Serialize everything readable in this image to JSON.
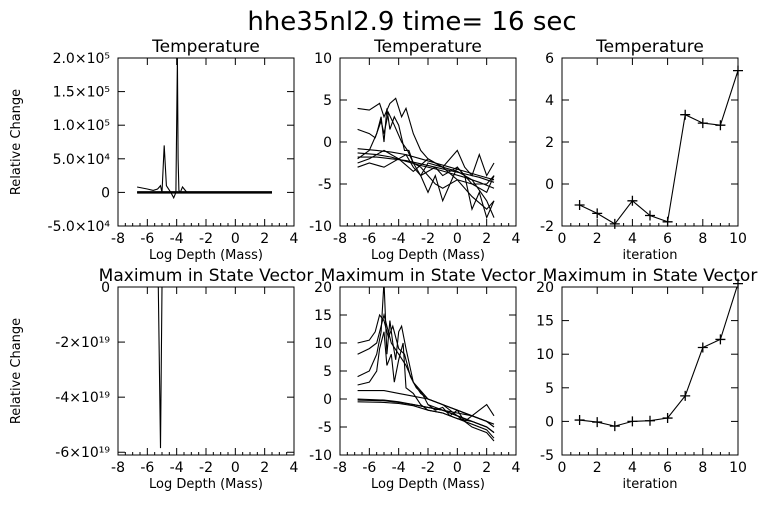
{
  "figure_title": "hhe35nl2.9   time=  16 sec",
  "chart_data": [
    {
      "type": "line",
      "panel": "top-left",
      "title": "Temperature",
      "xlabel": "Log Depth (Mass)",
      "ylabel": "Relative Change",
      "xlim": [
        -8,
        4
      ],
      "ylim": [
        -50000,
        200000
      ],
      "xticks": [
        "-8",
        "-6",
        "-4",
        "-2",
        "0",
        "2",
        "4"
      ],
      "yticks": [
        "-5.0×10⁴",
        "0",
        "5.0×10⁴",
        "1.0×10⁵",
        "1.5×10⁵",
        "2.0×10⁵"
      ],
      "ytick_values": [
        -50000,
        0,
        50000,
        100000,
        150000,
        200000
      ],
      "series": [
        {
          "x": [
            -6.7,
            -6.0,
            -5.6,
            -5.3,
            -5.1,
            -5.0,
            -4.85,
            -4.7,
            -4.4,
            -4.2,
            -4.05,
            -3.95,
            -3.9,
            -3.85,
            -3.75,
            -3.6,
            -3.3,
            2.5
          ],
          "y": [
            8000,
            5000,
            3000,
            5000,
            10000,
            0,
            70000,
            10000,
            0,
            -8000,
            0,
            200000,
            50000,
            3000,
            0,
            8000,
            0,
            0
          ]
        },
        {
          "x": [
            -6.7,
            2.5
          ],
          "y": [
            1000,
            1000
          ]
        },
        {
          "x": [
            -6.7,
            2.5
          ],
          "y": [
            0,
            0
          ]
        },
        {
          "x": [
            -6.7,
            2.5
          ],
          "y": [
            -1000,
            -1000
          ]
        }
      ]
    },
    {
      "type": "line",
      "panel": "top-middle",
      "title": "Temperature",
      "xlabel": "Log Depth (Mass)",
      "ylabel": "",
      "xlim": [
        -8,
        4
      ],
      "ylim": [
        -10,
        10
      ],
      "xticks": [
        "-8",
        "-6",
        "-4",
        "-2",
        "0",
        "2",
        "4"
      ],
      "yticks": [
        "-10",
        "-5",
        "0",
        "5",
        "10"
      ],
      "ytick_values": [
        -10,
        -5,
        0,
        5,
        10
      ],
      "series": [
        {
          "x": [
            -6.8,
            -6,
            -5.3,
            -5,
            -4.6,
            -4.2,
            -3.8,
            -3.5,
            -3,
            -2.5,
            -2,
            -1,
            0,
            1,
            2,
            2.5
          ],
          "y": [
            4,
            3.8,
            4.6,
            3,
            4.6,
            5.2,
            3,
            4,
            1,
            -1,
            -2,
            -3,
            -3.5,
            -4.5,
            -7,
            -9
          ]
        },
        {
          "x": [
            -6.8,
            -6,
            -5.5,
            -5.2,
            -5,
            -4.8,
            -4.6,
            -4.3,
            -4,
            -3.6,
            -3.3,
            -3,
            -2.5,
            -2,
            -1.5,
            -1,
            0,
            1,
            2,
            2.5
          ],
          "y": [
            -2,
            -1,
            1,
            3,
            0,
            4,
            1.5,
            3,
            2,
            -1,
            -1,
            -2.5,
            -3,
            -4,
            -5,
            -5.5,
            -4.5,
            -6.5,
            -8,
            -7
          ]
        },
        {
          "x": [
            -6.8,
            -6,
            -5.6,
            -5.2,
            -5,
            -4.7,
            -4.3,
            -3.8,
            -3.4,
            -3,
            -2.5,
            -2,
            -1.5,
            -1,
            0,
            1,
            2,
            2.5
          ],
          "y": [
            1.5,
            1,
            0.5,
            2.5,
            1,
            3.5,
            2,
            0,
            -1,
            -2.5,
            -4,
            -3.5,
            -3,
            -4,
            -3,
            -5,
            -6,
            -4
          ]
        },
        {
          "x": [
            -6.8,
            -6,
            -5,
            -4.5,
            -4,
            -3.5,
            -3,
            -2.5,
            -2,
            -1,
            0,
            0.5,
            1,
            1.5,
            2,
            2.5
          ],
          "y": [
            -2.5,
            -2,
            -1,
            -1.5,
            -2,
            -1.5,
            -3,
            -4,
            -2.5,
            -3,
            -1,
            -3,
            -4,
            -1.5,
            -4,
            -2.5
          ]
        },
        {
          "x": [
            -6.8,
            -5.5,
            -4.5,
            -3.5,
            -2.5,
            -1.5,
            -0.5,
            0.5,
            1.5,
            2.5
          ],
          "y": [
            -0.8,
            -1,
            -1.2,
            -1.5,
            -2,
            -2.5,
            -3,
            -3.5,
            -4,
            -4.5
          ]
        },
        {
          "x": [
            -6.8,
            -5.5,
            -4.5,
            -3.5,
            -2.5,
            -1.5,
            -0.5,
            0.5,
            1.5,
            2.5
          ],
          "y": [
            -1.8,
            -1.8,
            -2,
            -2.2,
            -2.6,
            -3,
            -3.4,
            -3.8,
            -4.2,
            -4.8
          ]
        },
        {
          "x": [
            -6.8,
            -5.5,
            -4.5,
            -3.5,
            -2.5,
            -1.5,
            -0.5,
            0.5,
            1.5,
            2.5
          ],
          "y": [
            -1.3,
            -1.5,
            -1.8,
            -2.3,
            -2.8,
            -3.2,
            -3.7,
            -4.2,
            -4.8,
            -5.5
          ]
        },
        {
          "x": [
            -6.8,
            -6,
            -5,
            -4,
            -3,
            -2,
            -1,
            0,
            1,
            2,
            2.5
          ],
          "y": [
            -3,
            -2.5,
            -3,
            -2,
            -3.5,
            -2,
            -3,
            -4.5,
            -5,
            -5,
            -4
          ]
        },
        {
          "x": [
            -2.5,
            -2,
            -1.5,
            -1,
            -0.5,
            0,
            0.5,
            1,
            1.5,
            2,
            2.5
          ],
          "y": [
            -4,
            -6,
            -4,
            -7,
            -5,
            -3,
            -4,
            -8,
            -6,
            -9,
            -7
          ]
        }
      ]
    },
    {
      "type": "line",
      "panel": "top-right",
      "title": "Temperature",
      "xlabel": "iteration",
      "ylabel": "",
      "xlim": [
        0,
        10
      ],
      "ylim": [
        -2,
        6
      ],
      "xticks": [
        "0",
        "2",
        "4",
        "6",
        "8",
        "10"
      ],
      "yticks": [
        "-2",
        "0",
        "2",
        "4",
        "6"
      ],
      "ytick_values": [
        -2,
        0,
        2,
        4,
        6
      ],
      "markers": "plus",
      "series": [
        {
          "x": [
            1,
            2,
            3,
            4,
            5,
            6,
            7,
            8,
            9,
            10
          ],
          "y": [
            -1.0,
            -1.4,
            -1.9,
            -0.8,
            -1.5,
            -1.8,
            3.3,
            2.9,
            2.8,
            5.4
          ]
        }
      ]
    },
    {
      "type": "line",
      "panel": "bottom-left",
      "title": "Maximum in State Vector",
      "xlabel": "Log Depth (Mass)",
      "ylabel": "Relative Change",
      "xlim": [
        -8,
        4
      ],
      "ylim": [
        -6.1e+19,
        0
      ],
      "xticks": [
        "-8",
        "-6",
        "-4",
        "-2",
        "0",
        "2",
        "4"
      ],
      "yticks": [
        "-6×10¹⁹",
        "-4×10¹⁹",
        "-2×10¹⁹",
        "0"
      ],
      "ytick_values": [
        -6e+19,
        -4e+19,
        -2e+19,
        0
      ],
      "series": [
        {
          "x": [
            -5.5,
            -5.25,
            -5.1,
            -5.0,
            -4.9,
            2.5
          ],
          "y": [
            0,
            0,
            -5.85e+19,
            0,
            0,
            0
          ]
        }
      ]
    },
    {
      "type": "line",
      "panel": "bottom-middle",
      "title": "Maximum in State Vector",
      "xlabel": "Log Depth (Mass)",
      "ylabel": "",
      "xlim": [
        -8,
        4
      ],
      "ylim": [
        -10,
        20
      ],
      "xticks": [
        "-8",
        "-6",
        "-4",
        "-2",
        "0",
        "2",
        "4"
      ],
      "yticks": [
        "-10",
        "-5",
        "0",
        "5",
        "10",
        "15",
        "20"
      ],
      "ytick_values": [
        -10,
        -5,
        0,
        5,
        10,
        15,
        20
      ],
      "series": [
        {
          "x": [
            -6.8,
            -6,
            -5.5,
            -5.2,
            -5,
            -4.8,
            -4.6,
            -4.4,
            -4.2,
            -4,
            -3.8,
            -3.5,
            -3,
            -2.5,
            -2,
            -1,
            0,
            1,
            2,
            2.5
          ],
          "y": [
            4,
            5,
            8,
            12,
            21,
            8,
            14,
            10,
            7,
            12,
            13,
            9,
            3,
            1,
            0,
            -1,
            -3,
            -4,
            -5,
            -6
          ]
        },
        {
          "x": [
            -6.8,
            -6,
            -5.5,
            -5.3,
            -5,
            -4.8,
            -4.5,
            -4.3,
            -4,
            -3.7,
            -3.5,
            -3,
            -2.5,
            -2,
            -1,
            0,
            1,
            2,
            2.5
          ],
          "y": [
            2.5,
            3,
            5,
            9,
            12,
            6,
            8,
            3,
            7,
            10,
            2,
            1,
            -1,
            -2,
            -2.5,
            -3.5,
            -4,
            -5,
            -6
          ]
        },
        {
          "x": [
            -6.8,
            -6,
            -5.6,
            -5.3,
            -5,
            -4.7,
            -4.4,
            -4,
            -3.6,
            -3.2,
            -2.8,
            -2.4,
            -2,
            -1.5,
            -1,
            0,
            1,
            2,
            2.5
          ],
          "y": [
            10,
            10.5,
            12,
            15,
            14,
            11,
            13,
            9,
            8,
            4,
            2,
            1,
            -1,
            -1.5,
            -2,
            -3,
            -5,
            -6,
            -7.5
          ]
        },
        {
          "x": [
            -6.8,
            -6,
            -5.5,
            -5,
            -4.5,
            -4,
            -3.5,
            -3,
            -2,
            -1,
            0,
            1,
            2,
            2.5
          ],
          "y": [
            8,
            9,
            10,
            15,
            10,
            8,
            6,
            3,
            0,
            -1,
            -2,
            -3,
            -4,
            -5
          ]
        },
        {
          "x": [
            -6.8,
            -5,
            -4,
            -3,
            -2,
            -1,
            0,
            1,
            2,
            2.5
          ],
          "y": [
            1.5,
            1.5,
            1,
            0.5,
            0,
            -1,
            -2,
            -3,
            -4,
            -5
          ]
        },
        {
          "x": [
            -6.8,
            -5,
            -4,
            -3,
            -2,
            -1,
            0,
            1,
            2,
            2.5
          ],
          "y": [
            -0.2,
            -0.3,
            -0.6,
            -1,
            -1.5,
            -2,
            -3,
            -4,
            -5,
            -6
          ]
        },
        {
          "x": [
            -6.8,
            -5,
            -4,
            -3,
            -2,
            -1,
            0,
            1,
            2,
            2.5
          ],
          "y": [
            -0.5,
            -0.6,
            -0.8,
            -1.2,
            -2,
            -2.5,
            -3.5,
            -4.5,
            -5.5,
            -7
          ]
        },
        {
          "x": [
            -6.8,
            -5,
            -4,
            -3,
            -2,
            -1,
            0,
            1,
            2,
            2.5
          ],
          "y": [
            0,
            -0.2,
            -0.5,
            -1,
            -1.5,
            -2,
            -2.5,
            -3,
            -4,
            -4.5
          ]
        },
        {
          "x": [
            -2,
            -1.5,
            -1,
            -0.5,
            0,
            0.5,
            1,
            1.5,
            2,
            2.5
          ],
          "y": [
            -1,
            -2,
            -1.5,
            -3,
            -2,
            -4,
            -3,
            -2,
            -1,
            -3
          ]
        }
      ]
    },
    {
      "type": "line",
      "panel": "bottom-right",
      "title": "Maximum in State Vector",
      "xlabel": "iteration",
      "ylabel": "",
      "xlim": [
        0,
        10
      ],
      "ylim": [
        -5,
        20
      ],
      "xticks": [
        "0",
        "2",
        "4",
        "6",
        "8",
        "10"
      ],
      "yticks": [
        "-5",
        "0",
        "5",
        "10",
        "15",
        "20"
      ],
      "ytick_values": [
        -5,
        0,
        5,
        10,
        15,
        20
      ],
      "markers": "plus",
      "series": [
        {
          "x": [
            1,
            2,
            3,
            4,
            5,
            6,
            7,
            8,
            9,
            10
          ],
          "y": [
            0.2,
            -0.1,
            -0.7,
            0.0,
            0.1,
            0.5,
            3.8,
            11.0,
            12.2,
            20.5
          ]
        }
      ]
    }
  ]
}
